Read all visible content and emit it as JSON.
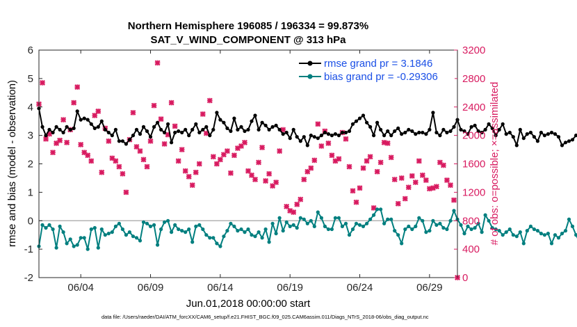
{
  "colors": {
    "rmse": "#000000",
    "bias": "#007f7f",
    "obs": "#d81b60",
    "legend_text": "#1a4fe6",
    "zero_line": "#b3b3b3"
  },
  "chart_data": {
    "type": "line",
    "title_line1": "Northern Hemisphere 196085 / 196334 = 99.873%",
    "title_line2": "SAT_V_WIND_COMPONENT @ 313 hPa",
    "xlabel": "Jun.01,2018 00:00:00 start",
    "ylabel_left": "rmse and bias (model - observation)",
    "ylabel_right": "# of obs: o=possible; ×=assimilated",
    "x_range_days": [
      1,
      31
    ],
    "x_ticks": [
      {
        "day": 4,
        "label": "06/04"
      },
      {
        "day": 9,
        "label": "06/09"
      },
      {
        "day": 14,
        "label": "06/14"
      },
      {
        "day": 19,
        "label": "06/19"
      },
      {
        "day": 24,
        "label": "06/24"
      },
      {
        "day": 29,
        "label": "06/29"
      }
    ],
    "ylim_left": [
      -2,
      6
    ],
    "yticks_left": [
      "-2",
      "-1",
      "0",
      "1",
      "2",
      "3",
      "4",
      "5",
      "6"
    ],
    "ylim_right": [
      0,
      3200
    ],
    "yticks_right": [
      "0",
      "400",
      "800",
      "1200",
      "1600",
      "2000",
      "2400",
      "2800",
      "3200"
    ],
    "legend": [
      {
        "label": "rmse grand pr = 3.1846",
        "series": "rmse"
      },
      {
        "label": "bias grand pr = -0.29306",
        "series": "bias"
      }
    ],
    "series": [
      {
        "name": "rmse",
        "axis": "left",
        "x_start": 1.0,
        "x_step": 0.25,
        "values": [
          3.95,
          3.3,
          3.0,
          3.2,
          3.1,
          3.3,
          3.2,
          3.1,
          3.3,
          3.2,
          3.25,
          3.85,
          3.55,
          3.6,
          3.55,
          3.4,
          3.25,
          3.3,
          3.5,
          3.2,
          3.1,
          3.0,
          3.2,
          2.8,
          2.8,
          2.7,
          2.85,
          3.0,
          3.2,
          3.05,
          3.3,
          3.15,
          2.95,
          3.3,
          3.45,
          3.2,
          3.1,
          3.4,
          2.75,
          3.1,
          3.15,
          3.1,
          3.2,
          3.0,
          3.2,
          3.4,
          3.1,
          3.2,
          3.3,
          3.0,
          3.2,
          3.8,
          3.55,
          3.45,
          3.25,
          3.15,
          3.6,
          3.2,
          3.3,
          3.15,
          3.2,
          3.5,
          3.7,
          3.2,
          3.45,
          3.35,
          3.2,
          3.3,
          3.35,
          3.2,
          3.05,
          3.1,
          2.9,
          3.2,
          2.95,
          2.8,
          2.95,
          2.65,
          3.0,
          2.95,
          2.9,
          3.0,
          3.1,
          3.05,
          3.0,
          3.05,
          3.0,
          3.1,
          3.1,
          3.15,
          3.4,
          3.5,
          3.6,
          3.7,
          3.45,
          3.3,
          3.0,
          3.45,
          3.2,
          3.0,
          3.15,
          3.0,
          3.15,
          3.25,
          3.05,
          3.1,
          3.2,
          3.15,
          3.05,
          3.1,
          3.1,
          3.05,
          3.2,
          3.8,
          3.1,
          3.0,
          3.2,
          3.1,
          3.15,
          3.3,
          3.55,
          3.2,
          3.15,
          3.05,
          3.3,
          3.35,
          3.15,
          3.1,
          3.2,
          3.4,
          3.25,
          3.0,
          3.2,
          3.4,
          3.05,
          3.1,
          2.95,
          2.65,
          3.2,
          2.9,
          3.05,
          3.1,
          2.95,
          2.8,
          3.1,
          3.0,
          3.05,
          3.1,
          3.05,
          2.95,
          2.65,
          2.75,
          2.8,
          2.85,
          3.0,
          3.05,
          3.2,
          3.1,
          3.1,
          3.1,
          3.1
        ]
      },
      {
        "name": "bias",
        "axis": "left",
        "x_start": 1.0,
        "x_step": 0.25,
        "values": [
          -0.9,
          -0.15,
          -0.25,
          -0.15,
          -0.3,
          -0.95,
          -0.2,
          -0.4,
          -0.8,
          -0.65,
          -0.9,
          -0.85,
          -0.6,
          -0.6,
          -1.0,
          -0.3,
          -0.25,
          -0.95,
          -0.3,
          -0.5,
          -0.45,
          -0.4,
          -0.2,
          -0.1,
          -0.3,
          -0.5,
          -0.4,
          -0.55,
          -0.6,
          -0.7,
          -0.05,
          -0.1,
          -0.2,
          -0.15,
          -0.85,
          -0.3,
          -0.05,
          0.0,
          -0.4,
          -0.15,
          -0.3,
          -0.35,
          -0.4,
          -0.3,
          -0.75,
          -0.2,
          -0.15,
          -0.3,
          -0.5,
          -0.6,
          -0.6,
          -0.8,
          -0.9,
          -0.55,
          -0.35,
          -0.1,
          -0.2,
          -0.35,
          -0.3,
          -0.4,
          -0.3,
          -0.5,
          -0.55,
          -0.4,
          -0.6,
          -0.3,
          -0.75,
          -0.1,
          -0.45,
          0.1,
          -0.35,
          -0.05,
          -0.2,
          -0.15,
          -0.25,
          0.1,
          0.05,
          -0.1,
          0.0,
          -0.2,
          0.3,
          0.1,
          -0.2,
          -0.3,
          -0.3,
          0.1,
          0.1,
          -0.2,
          -0.1,
          -0.5,
          -0.3,
          -0.1,
          -0.15,
          -0.2,
          -0.1,
          0.05,
          0.2,
          0.4,
          0.4,
          -0.1,
          0.05,
          0.05,
          -0.35,
          -0.5,
          -0.8,
          -0.3,
          -0.2,
          -0.3,
          -0.2,
          0.1,
          0.0,
          -0.4,
          -0.35,
          0.0,
          -0.15,
          -0.1,
          -0.25,
          -0.3,
          0.0,
          0.35,
          0.05,
          -0.15,
          -0.45,
          -0.2,
          -0.3,
          -0.25,
          -0.1,
          -0.4,
          0.2,
          0.0,
          -0.25,
          -0.3,
          -0.35,
          -0.5,
          -0.4,
          -0.3,
          -0.5,
          -0.55,
          -0.4,
          -0.8,
          -0.35,
          -0.2,
          -0.3,
          -0.35,
          -0.45,
          -0.5,
          -0.45,
          -0.8,
          -0.5,
          -0.6,
          -0.45,
          -0.35,
          0.05,
          -0.2,
          -0.5,
          -0.75,
          -0.8,
          -0.95,
          -0.4,
          -0.3
        ]
      },
      {
        "name": "obs_assimilated",
        "axis": "right",
        "marker": "x",
        "points": [
          [
            1.0,
            2440
          ],
          [
            1.25,
            2740
          ],
          [
            1.5,
            1950
          ],
          [
            1.75,
            2020
          ],
          [
            2.0,
            1760
          ],
          [
            2.25,
            1890
          ],
          [
            2.5,
            1930
          ],
          [
            2.75,
            2220
          ],
          [
            3.0,
            1900
          ],
          [
            3.25,
            2080
          ],
          [
            3.5,
            2460
          ],
          [
            3.75,
            2680
          ],
          [
            4.0,
            1870
          ],
          [
            4.25,
            1760
          ],
          [
            4.5,
            1720
          ],
          [
            4.75,
            1640
          ],
          [
            5.0,
            2280
          ],
          [
            5.25,
            2340
          ],
          [
            5.5,
            1480
          ],
          [
            5.75,
            2100
          ],
          [
            6.0,
            1920
          ],
          [
            6.25,
            1680
          ],
          [
            6.5,
            1640
          ],
          [
            6.75,
            1560
          ],
          [
            7.0,
            1460
          ],
          [
            7.25,
            1200
          ],
          [
            7.5,
            1940
          ],
          [
            7.75,
            2320
          ],
          [
            8.0,
            1840
          ],
          [
            8.25,
            1780
          ],
          [
            8.5,
            1660
          ],
          [
            8.75,
            1560
          ],
          [
            9.0,
            1920
          ],
          [
            9.25,
            2420
          ],
          [
            9.5,
            3020
          ],
          [
            9.75,
            2230
          ],
          [
            10.0,
            1880
          ],
          [
            10.25,
            2010
          ],
          [
            10.5,
            2460
          ],
          [
            10.75,
            2130
          ],
          [
            11.0,
            1640
          ],
          [
            11.25,
            1800
          ],
          [
            11.5,
            1500
          ],
          [
            11.75,
            1420
          ],
          [
            12.0,
            1300
          ],
          [
            12.25,
            1480
          ],
          [
            12.5,
            1600
          ],
          [
            12.75,
            2300
          ],
          [
            13.0,
            2030
          ],
          [
            13.25,
            2490
          ],
          [
            13.5,
            1700
          ],
          [
            13.75,
            1600
          ],
          [
            14.0,
            1660
          ],
          [
            14.25,
            1730
          ],
          [
            14.5,
            1780
          ],
          [
            14.75,
            1470
          ],
          [
            15.0,
            1720
          ],
          [
            15.25,
            1820
          ],
          [
            15.5,
            1850
          ],
          [
            15.75,
            1900
          ],
          [
            16.0,
            1500
          ],
          [
            16.25,
            1440
          ],
          [
            16.5,
            1380
          ],
          [
            16.75,
            1620
          ],
          [
            17.0,
            1830
          ],
          [
            17.25,
            1360
          ],
          [
            17.5,
            1460
          ],
          [
            17.75,
            1290
          ],
          [
            18.0,
            1340
          ],
          [
            18.25,
            1780
          ],
          [
            18.5,
            2080
          ],
          [
            18.75,
            1000
          ],
          [
            19.0,
            940
          ],
          [
            19.25,
            920
          ],
          [
            19.5,
            1030
          ],
          [
            19.75,
            1100
          ],
          [
            20.0,
            1380
          ],
          [
            20.25,
            1490
          ],
          [
            20.5,
            1540
          ],
          [
            20.75,
            1650
          ],
          [
            21.0,
            2160
          ],
          [
            21.25,
            1850
          ],
          [
            21.5,
            2060
          ],
          [
            21.75,
            1890
          ],
          [
            22.0,
            1720
          ],
          [
            22.25,
            1640
          ],
          [
            22.5,
            1670
          ],
          [
            22.75,
            2040
          ],
          [
            23.0,
            1950
          ],
          [
            23.25,
            1560
          ],
          [
            23.5,
            1220
          ],
          [
            23.75,
            1060
          ],
          [
            24.0,
            1260
          ],
          [
            24.25,
            1540
          ],
          [
            24.5,
            1640
          ],
          [
            24.75,
            1700
          ],
          [
            25.0,
            980
          ],
          [
            25.25,
            1490
          ],
          [
            25.5,
            1620
          ],
          [
            25.75,
            1900
          ],
          [
            26.0,
            1890
          ],
          [
            26.25,
            1690
          ],
          [
            26.5,
            1380
          ],
          [
            26.75,
            1040
          ],
          [
            27.0,
            1400
          ],
          [
            27.25,
            1110
          ],
          [
            27.5,
            1270
          ],
          [
            27.75,
            1430
          ],
          [
            28.0,
            1340
          ],
          [
            28.25,
            1640
          ],
          [
            28.5,
            1440
          ],
          [
            28.75,
            1370
          ],
          [
            29.0,
            1250
          ],
          [
            29.25,
            1260
          ],
          [
            29.5,
            1280
          ],
          [
            29.75,
            1620
          ],
          [
            30.0,
            1580
          ],
          [
            30.25,
            1370
          ],
          [
            30.5,
            1300
          ],
          [
            30.75,
            1090
          ],
          [
            31.0,
            0
          ]
        ]
      }
    ]
  },
  "footer": "data file: /Users/raeder/DAI/ATM_forcXX/CAM6_setup/f.e21.FHIST_BGC.f09_025.CAM6assim.011/Diags_NTrS_2018-06/obs_diag_output.nc"
}
